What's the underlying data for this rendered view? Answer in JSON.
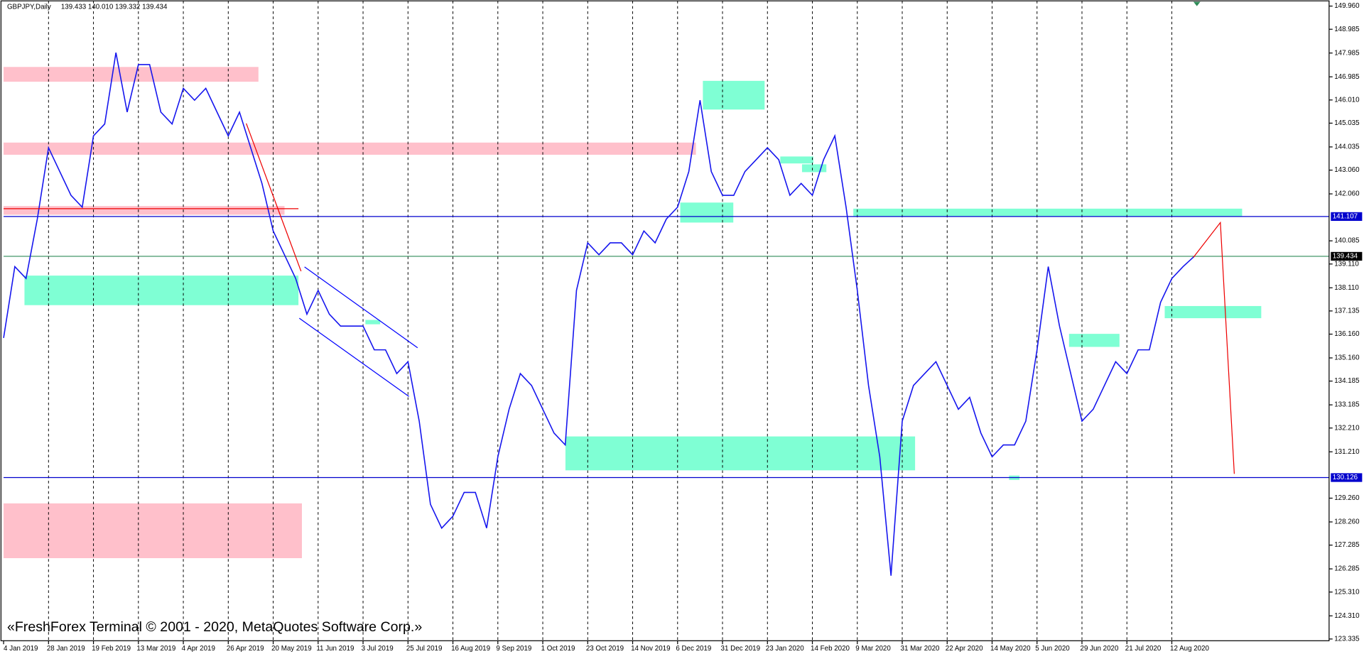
{
  "chart_data": {
    "type": "line",
    "title": "GBPJPY,Daily",
    "ohlc": "139.433 140.010 139.332 139.434",
    "watermark": "«FreshForex Terminal © 2001 - 2020, MetaQuotes Software Corp.»",
    "xlim": [
      0,
      472
    ],
    "ylim": [
      123.335,
      149.96
    ],
    "xticks": [
      {
        "value": 0,
        "label": "4 Jan 2019"
      },
      {
        "value": 16,
        "label": "28 Jan 2019"
      },
      {
        "value": 32,
        "label": "19 Feb 2019"
      },
      {
        "value": 48,
        "label": "13 Mar 2019"
      },
      {
        "value": 64,
        "label": "4 Apr 2019"
      },
      {
        "value": 80,
        "label": "26 Apr 2019"
      },
      {
        "value": 96,
        "label": "20 May 2019"
      },
      {
        "value": 112,
        "label": "11 Jun 2019"
      },
      {
        "value": 128,
        "label": "3 Jul 2019"
      },
      {
        "value": 144,
        "label": "25 Jul 2019"
      },
      {
        "value": 160,
        "label": "16 Aug 2019"
      },
      {
        "value": 176,
        "label": "9 Sep 2019"
      },
      {
        "value": 192,
        "label": "1 Oct 2019"
      },
      {
        "value": 208,
        "label": "23 Oct 2019"
      },
      {
        "value": 224,
        "label": "14 Nov 2019"
      },
      {
        "value": 240,
        "label": "6 Dec 2019"
      },
      {
        "value": 256,
        "label": "31 Dec 2019"
      },
      {
        "value": 272,
        "label": "23 Jan 2020"
      },
      {
        "value": 288,
        "label": "14 Feb 2020"
      },
      {
        "value": 304,
        "label": "9 Mar 2020"
      },
      {
        "value": 320,
        "label": "31 Mar 2020"
      },
      {
        "value": 336,
        "label": "22 Apr 2020"
      },
      {
        "value": 352,
        "label": "14 May 2020"
      },
      {
        "value": 368,
        "label": "5 Jun 2020"
      },
      {
        "value": 384,
        "label": "29 Jun 2020"
      },
      {
        "value": 400,
        "label": "21 Jul 2020"
      },
      {
        "value": 416,
        "label": "12 Aug 2020"
      }
    ],
    "yticks": [
      {
        "value": 149.96,
        "label": "149.960"
      },
      148.985,
      147.985,
      146.985,
      {
        "value": 146.01,
        "label": "146.010"
      },
      145.035,
      144.035,
      {
        "value": 143.06,
        "label": "143.060"
      },
      {
        "value": 142.06,
        "label": "142.060"
      },
      140.085,
      {
        "value": 139.11,
        "label": "139.110"
      },
      {
        "value": 138.11,
        "label": "138.110"
      },
      137.135,
      {
        "value": 136.16,
        "label": "136.160"
      },
      {
        "value": 135.16,
        "label": "135.160"
      },
      134.185,
      133.185,
      {
        "value": 132.21,
        "label": "132.210"
      },
      {
        "value": 131.21,
        "label": "131.210"
      },
      {
        "value": 129.26,
        "label": "129.260"
      },
      {
        "value": 128.26,
        "label": "128.260"
      },
      127.285,
      126.285,
      {
        "value": 125.31,
        "label": "125.310"
      },
      {
        "value": 124.31,
        "label": "124.310"
      },
      123.335
    ],
    "levels": [
      {
        "value": 141.107,
        "color": "#0000cd"
      },
      {
        "value": 139.434,
        "color": "#2e8b57"
      },
      {
        "value": 130.126,
        "color": "#0000cd"
      }
    ],
    "series": [
      {
        "name": "GBPJPY",
        "color": "#1515ee",
        "x": [
          0,
          4,
          8,
          12,
          16,
          20,
          24,
          28,
          32,
          36,
          40,
          44,
          48,
          52,
          56,
          60,
          64,
          68,
          72,
          76,
          80,
          84,
          88,
          92,
          96,
          100,
          104,
          108,
          112,
          116,
          120,
          124,
          128,
          132,
          136,
          140,
          144,
          148,
          152,
          156,
          160,
          164,
          168,
          172,
          176,
          180,
          184,
          188,
          192,
          196,
          200,
          204,
          208,
          212,
          216,
          220,
          224,
          228,
          232,
          236,
          240,
          244,
          248,
          252,
          256,
          260,
          264,
          268,
          272,
          276,
          280,
          284,
          288,
          292,
          296,
          300,
          304,
          308,
          312,
          316,
          320,
          324,
          328,
          332,
          336,
          340,
          344,
          348,
          352,
          356,
          360,
          364,
          368,
          372,
          376,
          380,
          384,
          388,
          392,
          396,
          400,
          404,
          408,
          412,
          416,
          420,
          424
        ],
        "values": [
          136.0,
          139.0,
          138.5,
          141.0,
          144.0,
          143.0,
          142.0,
          141.5,
          144.5,
          145.0,
          148.0,
          145.5,
          147.5,
          147.5,
          145.5,
          145.0,
          146.5,
          146.0,
          146.5,
          145.5,
          144.5,
          145.5,
          144.0,
          142.5,
          140.5,
          139.5,
          138.5,
          137.0,
          138.0,
          137.0,
          136.5,
          136.5,
          136.5,
          135.5,
          135.5,
          134.5,
          135.0,
          132.5,
          129.0,
          128.0,
          128.5,
          129.5,
          129.5,
          128.0,
          131.0,
          133.0,
          134.5,
          134.0,
          133.0,
          132.0,
          131.5,
          138.0,
          140.0,
          139.5,
          140.0,
          140.0,
          139.5,
          140.5,
          140.0,
          141.0,
          141.5,
          143.0,
          146.0,
          143.0,
          142.0,
          142.0,
          143.0,
          143.5,
          144.0,
          143.5,
          142.0,
          142.5,
          142.0,
          143.5,
          144.5,
          141.5,
          138.0,
          134.0,
          131.0,
          126.0,
          132.5,
          134.0,
          134.5,
          135.0,
          134.0,
          133.0,
          133.5,
          132.0,
          131.0,
          131.5,
          131.5,
          132.5,
          135.5,
          139.0,
          136.5,
          134.5,
          132.5,
          133.0,
          134.0,
          135.0,
          134.5,
          135.5,
          135.5,
          137.5,
          138.5,
          139.0,
          139.434
        ]
      }
    ]
  }
}
